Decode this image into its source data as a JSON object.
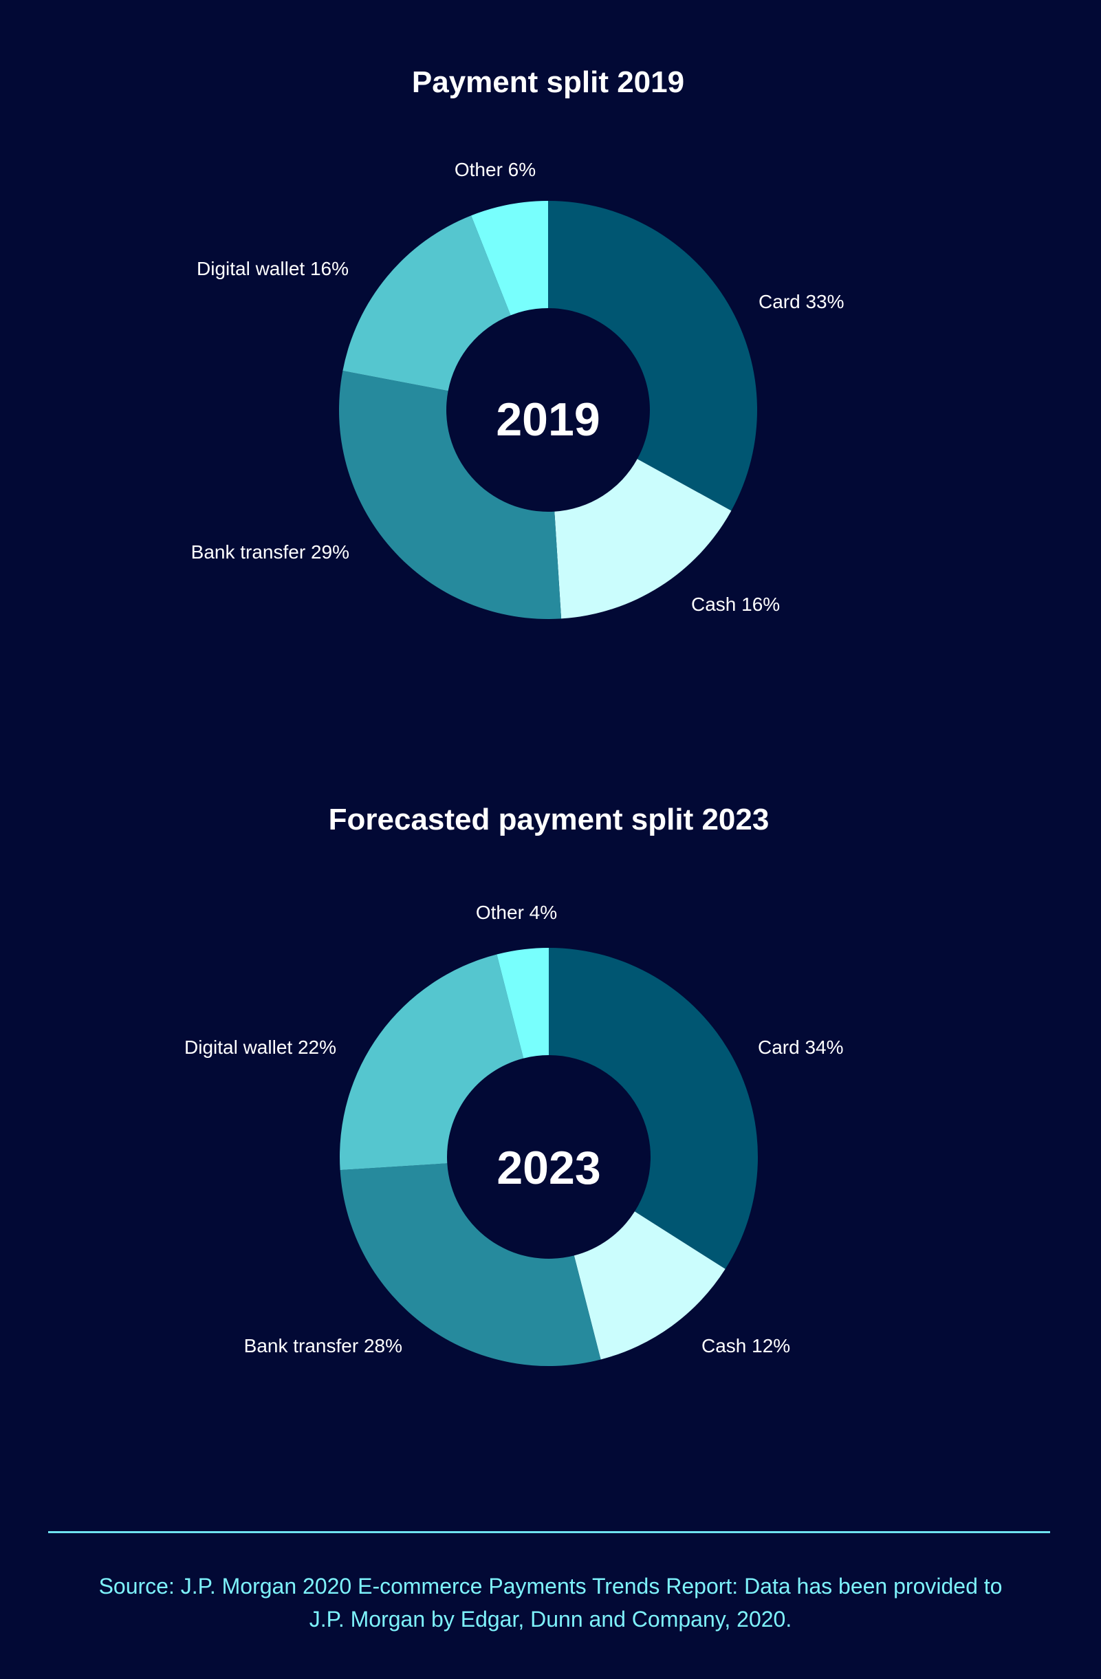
{
  "colors": {
    "background": "#020935",
    "card": "#005672",
    "cash": "#cbfdfd",
    "bank_transfer": "#268a9d",
    "digital_wallet": "#55c6cf",
    "other": "#78fffd",
    "accent_line": "#6fe3f0",
    "source_text": "#7ef2fb"
  },
  "chart_data": [
    {
      "type": "pie",
      "donut": true,
      "title": "Payment split 2019",
      "center_label": "2019",
      "slices": [
        {
          "name": "Card",
          "label": "Card 33%",
          "value": 33,
          "color": "#005672"
        },
        {
          "name": "Cash",
          "label": "Cash 16%",
          "value": 16,
          "color": "#cbfdfd"
        },
        {
          "name": "Bank transfer",
          "label": "Bank transfer 29%",
          "value": 29,
          "color": "#268a9d"
        },
        {
          "name": "Digital wallet",
          "label": "Digital wallet 16%",
          "value": 16,
          "color": "#55c6cf"
        },
        {
          "name": "Other",
          "label": "Other 6%",
          "value": 6,
          "color": "#78fffd"
        }
      ]
    },
    {
      "type": "pie",
      "donut": true,
      "title": "Forecasted payment split 2023",
      "center_label": "2023",
      "slices": [
        {
          "name": "Card",
          "label": "Card 34%",
          "value": 34,
          "color": "#005672"
        },
        {
          "name": "Cash",
          "label": "Cash 12%",
          "value": 12,
          "color": "#cbfdfd"
        },
        {
          "name": "Bank transfer",
          "label": "Bank transfer 28%",
          "value": 28,
          "color": "#268a9d"
        },
        {
          "name": "Digital wallet",
          "label": "Digital wallet 22%",
          "value": 22,
          "color": "#55c6cf"
        },
        {
          "name": "Other",
          "label": "Other 4%",
          "value": 4,
          "color": "#78fffd"
        }
      ]
    }
  ],
  "footer": {
    "source_line_1": "Source: J.P. Morgan 2020 E-commerce Payments Trends Report: Data has been provided to",
    "source_line_2": "J.P. Morgan by Edgar, Dunn and Company, 2020."
  }
}
